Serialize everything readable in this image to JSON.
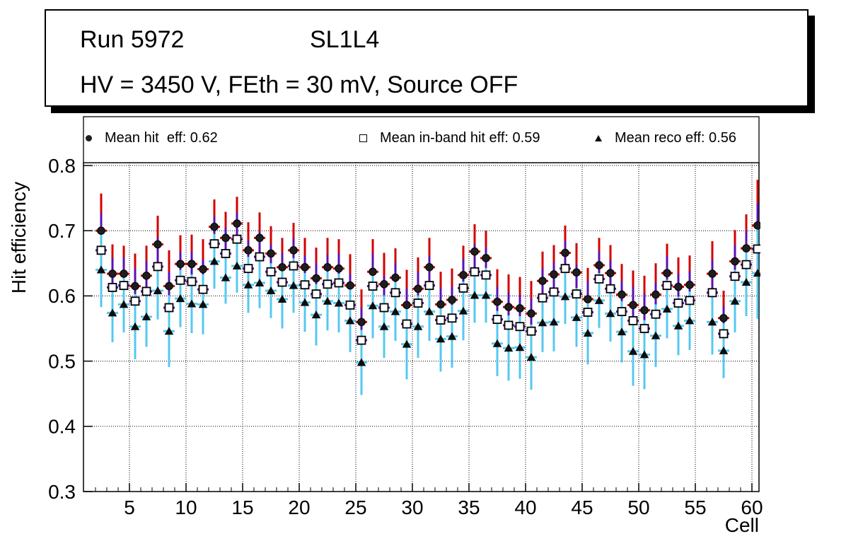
{
  "title_box": {
    "line1_left": "Run 5972",
    "line1_right": "SL1L4",
    "line2": "HV = 3450 V, FEth = 30 mV, Source OFF"
  },
  "legend": {
    "entries": [
      {
        "marker": "filled-circle",
        "label": "Mean hit  eff: 0.62"
      },
      {
        "marker": "open-square",
        "label": "Mean in-band hit eff: 0.59"
      },
      {
        "marker": "filled-triangle",
        "label": "Mean reco eff: 0.56"
      }
    ]
  },
  "colors": {
    "hit_error": "#d40000",
    "inband_error": "#5a10b4",
    "reco_error": "#55c8f0",
    "hit_marker": "#1e1e1e",
    "inband_marker_fill": "#ffffff",
    "inband_marker_edge": "#000000",
    "reco_marker": "#0d0d0d",
    "frame": "#000000"
  },
  "chart_data": {
    "type": "scatter",
    "title": "",
    "xlabel": "Cell",
    "ylabel": "Hit efficiency",
    "xlim": [
      1,
      61
    ],
    "ylim": [
      0.3,
      0.8043
    ],
    "grid": true,
    "legend_position": "top",
    "x_ticks": [
      5,
      10,
      15,
      20,
      25,
      30,
      35,
      40,
      45,
      50,
      55,
      60
    ],
    "y_ticks": [
      0.3,
      0.4,
      0.5,
      0.6,
      0.7,
      0.8
    ],
    "y_tick_labels": [
      "0.3",
      "0.4",
      "0.5",
      "0.6",
      "0.7",
      "0.8"
    ],
    "series_meta": [
      {
        "name": "Mean hit eff",
        "mean": 0.62,
        "marker": "filled-circle",
        "error_color": "hit_error"
      },
      {
        "name": "Mean in-band hit eff",
        "mean": 0.59,
        "marker": "open-square",
        "error_color": "inband_error"
      },
      {
        "name": "Mean reco eff",
        "mean": 0.56,
        "marker": "filled-triangle",
        "error_color": "reco_error"
      }
    ],
    "points_format": [
      "cell",
      "hit_eff",
      "inband_eff",
      "reco_eff",
      "err"
    ],
    "points": [
      [
        2,
        0.7,
        0.67,
        0.64,
        0.057
      ],
      [
        3,
        0.634,
        0.613,
        0.574,
        0.045
      ],
      [
        4,
        0.634,
        0.616,
        0.587,
        0.043
      ],
      [
        5,
        0.615,
        0.592,
        0.553,
        0.05
      ],
      [
        6,
        0.631,
        0.607,
        0.568,
        0.046
      ],
      [
        7,
        0.679,
        0.645,
        0.608,
        0.044
      ],
      [
        8,
        0.615,
        0.582,
        0.546,
        0.055
      ],
      [
        9,
        0.649,
        0.624,
        0.596,
        0.044
      ],
      [
        10,
        0.649,
        0.622,
        0.588,
        0.045
      ],
      [
        11,
        0.641,
        0.61,
        0.587,
        0.046
      ],
      [
        12,
        0.706,
        0.68,
        0.653,
        0.042
      ],
      [
        13,
        0.689,
        0.665,
        0.628,
        0.04
      ],
      [
        14,
        0.711,
        0.687,
        0.646,
        0.041
      ],
      [
        15,
        0.67,
        0.642,
        0.617,
        0.043
      ],
      [
        16,
        0.689,
        0.66,
        0.62,
        0.039
      ],
      [
        17,
        0.665,
        0.637,
        0.608,
        0.042
      ],
      [
        18,
        0.644,
        0.621,
        0.595,
        0.045
      ],
      [
        19,
        0.67,
        0.646,
        0.616,
        0.042
      ],
      [
        20,
        0.644,
        0.617,
        0.59,
        0.045
      ],
      [
        21,
        0.627,
        0.603,
        0.571,
        0.047
      ],
      [
        22,
        0.644,
        0.618,
        0.592,
        0.045
      ],
      [
        23,
        0.642,
        0.62,
        0.589,
        0.045
      ],
      [
        24,
        0.616,
        0.586,
        0.562,
        0.048
      ],
      [
        25,
        0.56,
        0.532,
        0.498,
        0.05
      ],
      [
        26,
        0.637,
        0.615,
        0.585,
        0.05
      ],
      [
        27,
        0.618,
        0.582,
        0.553,
        0.048
      ],
      [
        28,
        0.628,
        0.605,
        0.576,
        0.045
      ],
      [
        29,
        0.586,
        0.557,
        0.526,
        0.054
      ],
      [
        30,
        0.611,
        0.589,
        0.553,
        0.048
      ],
      [
        31,
        0.644,
        0.616,
        0.576,
        0.045
      ],
      [
        32,
        0.587,
        0.563,
        0.534,
        0.05
      ],
      [
        33,
        0.594,
        0.566,
        0.538,
        0.048
      ],
      [
        34,
        0.632,
        0.612,
        0.577,
        0.045
      ],
      [
        35,
        0.668,
        0.637,
        0.601,
        0.042
      ],
      [
        36,
        0.658,
        0.632,
        0.601,
        0.042
      ],
      [
        37,
        0.591,
        0.564,
        0.527,
        0.05
      ],
      [
        38,
        0.583,
        0.555,
        0.52,
        0.05
      ],
      [
        39,
        0.581,
        0.553,
        0.521,
        0.048
      ],
      [
        40,
        0.573,
        0.546,
        0.506,
        0.05
      ],
      [
        41,
        0.623,
        0.597,
        0.559,
        0.045
      ],
      [
        42,
        0.633,
        0.606,
        0.56,
        0.045
      ],
      [
        43,
        0.666,
        0.642,
        0.599,
        0.042
      ],
      [
        44,
        0.636,
        0.603,
        0.567,
        0.045
      ],
      [
        45,
        0.595,
        0.575,
        0.543,
        0.048
      ],
      [
        46,
        0.647,
        0.626,
        0.593,
        0.042
      ],
      [
        47,
        0.635,
        0.611,
        0.573,
        0.043
      ],
      [
        48,
        0.602,
        0.576,
        0.545,
        0.047
      ],
      [
        49,
        0.586,
        0.562,
        0.515,
        0.053
      ],
      [
        50,
        0.578,
        0.55,
        0.51,
        0.053
      ],
      [
        51,
        0.602,
        0.572,
        0.539,
        0.048
      ],
      [
        52,
        0.635,
        0.616,
        0.58,
        0.045
      ],
      [
        53,
        0.614,
        0.589,
        0.554,
        0.045
      ],
      [
        54,
        0.617,
        0.593,
        0.562,
        0.045
      ],
      [
        56,
        0.634,
        0.605,
        0.56,
        0.05
      ],
      [
        57,
        0.566,
        0.542,
        0.516,
        0.042
      ],
      [
        58,
        0.653,
        0.63,
        0.592,
        0.048
      ],
      [
        59,
        0.673,
        0.648,
        0.621,
        0.052
      ],
      [
        60,
        0.708,
        0.672,
        0.635,
        0.07
      ]
    ]
  }
}
